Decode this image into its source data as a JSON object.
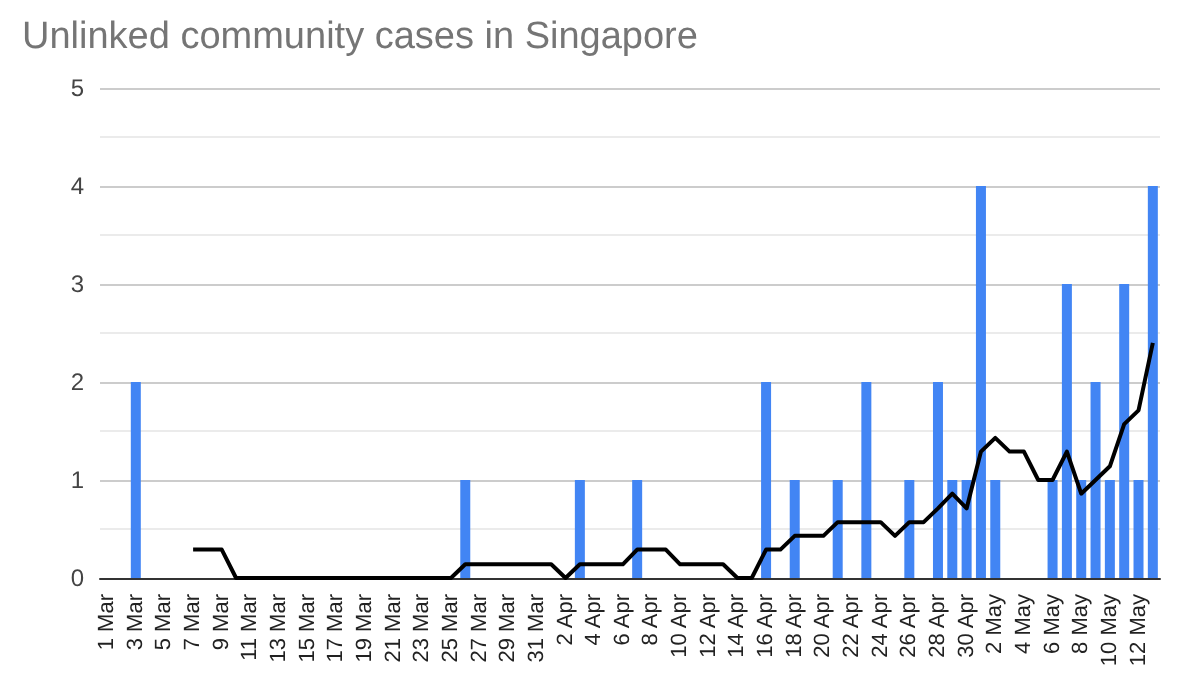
{
  "chart_data": {
    "type": "bar",
    "title": "Unlinked community cases in Singapore",
    "categories": [
      "1 Mar",
      null,
      "3 Mar",
      null,
      "5 Mar",
      null,
      "7 Mar",
      null,
      "9 Mar",
      null,
      "11 Mar",
      null,
      "13 Mar",
      null,
      "15 Mar",
      null,
      "17 Mar",
      null,
      "19 Mar",
      null,
      "21 Mar",
      null,
      "23 Mar",
      null,
      "25 Mar",
      null,
      "27 Mar",
      null,
      "29 Mar",
      null,
      "31 Mar",
      null,
      "2 Apr",
      null,
      "4 Apr",
      null,
      "6 Apr",
      null,
      "8 Apr",
      null,
      "10 Apr",
      null,
      "12 Apr",
      null,
      "14 Apr",
      null,
      "16 Apr",
      null,
      "18 Apr",
      null,
      "20 Apr",
      null,
      "22 Apr",
      null,
      "24 Apr",
      null,
      "26 Apr",
      null,
      "28 Apr",
      null,
      "30 Apr",
      null,
      "2 May",
      null,
      "4 May",
      null,
      "6 May",
      null,
      "8 May",
      null,
      "10 May",
      null,
      "12 May",
      null
    ],
    "series": [
      {
        "color": "#4285f4",
        "values": [
          0,
          0,
          2,
          0,
          0,
          0,
          0,
          0,
          0,
          0,
          0,
          0,
          0,
          0,
          0,
          0,
          0,
          0,
          0,
          0,
          0,
          0,
          0,
          0,
          0,
          1,
          0,
          0,
          0,
          0,
          0,
          0,
          0,
          1,
          0,
          0,
          0,
          1,
          0,
          0,
          0,
          0,
          0,
          0,
          0,
          0,
          2,
          0,
          1,
          0,
          0,
          1,
          0,
          2,
          0,
          0,
          1,
          0,
          2,
          1,
          1,
          4,
          1,
          0,
          0,
          0,
          1,
          3,
          1,
          2,
          1,
          3,
          1,
          4
        ]
      },
      {
        "type": "line",
        "color": "#000000",
        "values": [
          null,
          null,
          null,
          null,
          null,
          null,
          0.29,
          0.29,
          0.29,
          0,
          0,
          0,
          0,
          0,
          0,
          0,
          0,
          0,
          0,
          0,
          0,
          0,
          0,
          0,
          0,
          0.14,
          0.14,
          0.14,
          0.14,
          0.14,
          0.14,
          0.14,
          0,
          0.14,
          0.14,
          0.14,
          0.14,
          0.29,
          0.29,
          0.29,
          0.14,
          0.14,
          0.14,
          0.14,
          0,
          0,
          0.29,
          0.29,
          0.43,
          0.43,
          0.43,
          0.57,
          0.57,
          0.57,
          0.57,
          0.43,
          0.57,
          0.57,
          0.71,
          0.86,
          0.71,
          1.29,
          1.43,
          1.29,
          1.29,
          1.0,
          1.0,
          1.29,
          0.86,
          1.0,
          1.14,
          1.57,
          1.71,
          2.4
        ]
      }
    ],
    "ylim": [
      0,
      5
    ],
    "yticks": [
      0,
      1,
      2,
      3,
      4,
      5
    ],
    "grid": "y",
    "marker": "none"
  }
}
